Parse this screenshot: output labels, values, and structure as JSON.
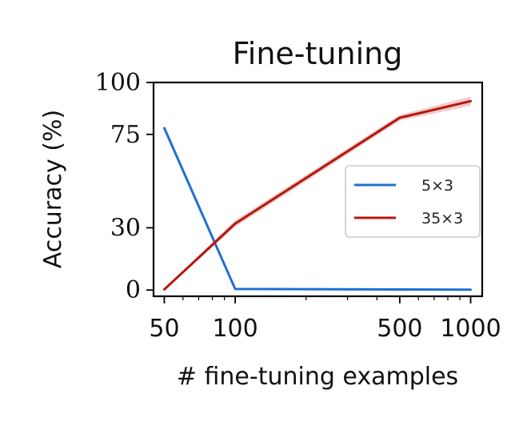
{
  "chart_data": {
    "type": "line",
    "title": "Fine-tuning",
    "xlabel": "# fine-tuning examples",
    "ylabel": "Accuracy (%)",
    "xscale": "log",
    "xlim": [
      45,
      1120
    ],
    "ylim": [
      -3,
      100
    ],
    "xticks": [
      50,
      100,
      500,
      1000
    ],
    "xtick_labels": [
      "50",
      "100",
      "500",
      "1000"
    ],
    "yticks": [
      0,
      30,
      75,
      100
    ],
    "ytick_labels": [
      "0",
      "30",
      "75",
      "100"
    ],
    "grid": false,
    "legend_position": "center-right",
    "series": [
      {
        "name": "5×3",
        "color": "#1f6fd1",
        "x": [
          50,
          100,
          500,
          1000
        ],
        "y": [
          78,
          0.5,
          0.3,
          0.2
        ],
        "band": [
          1.2,
          0.4,
          0.3,
          0.3
        ]
      },
      {
        "name": "35×3",
        "color": "#b5170f",
        "x": [
          50,
          100,
          500,
          1000
        ],
        "y": [
          0.3,
          32,
          83,
          91
        ],
        "band": [
          0.3,
          1.6,
          1.4,
          2.2
        ]
      }
    ]
  }
}
